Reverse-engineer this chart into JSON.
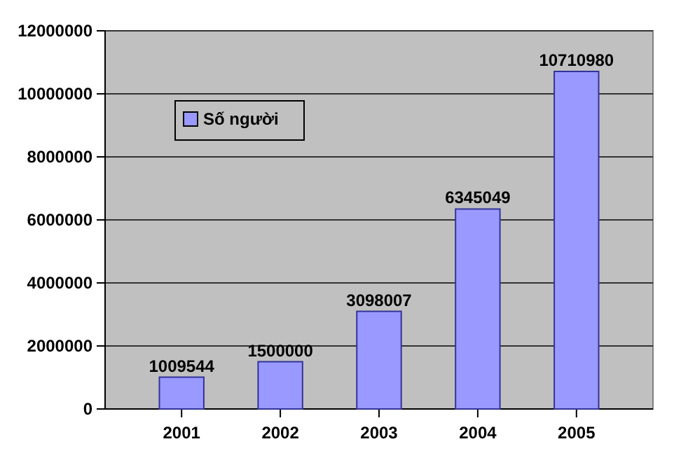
{
  "chart_data": {
    "type": "bar",
    "categories": [
      "2001",
      "2002",
      "2003",
      "2004",
      "2005"
    ],
    "series": [
      {
        "name": "Số người",
        "color": "#9999ff",
        "values": [
          1009544,
          1500000,
          3098007,
          6345049,
          10710980
        ]
      }
    ],
    "ylim": [
      0,
      12000000
    ],
    "yticks": [
      0,
      2000000,
      4000000,
      6000000,
      8000000,
      10000000,
      12000000
    ],
    "grid": "y",
    "legend": "top left",
    "data_labels": true
  }
}
